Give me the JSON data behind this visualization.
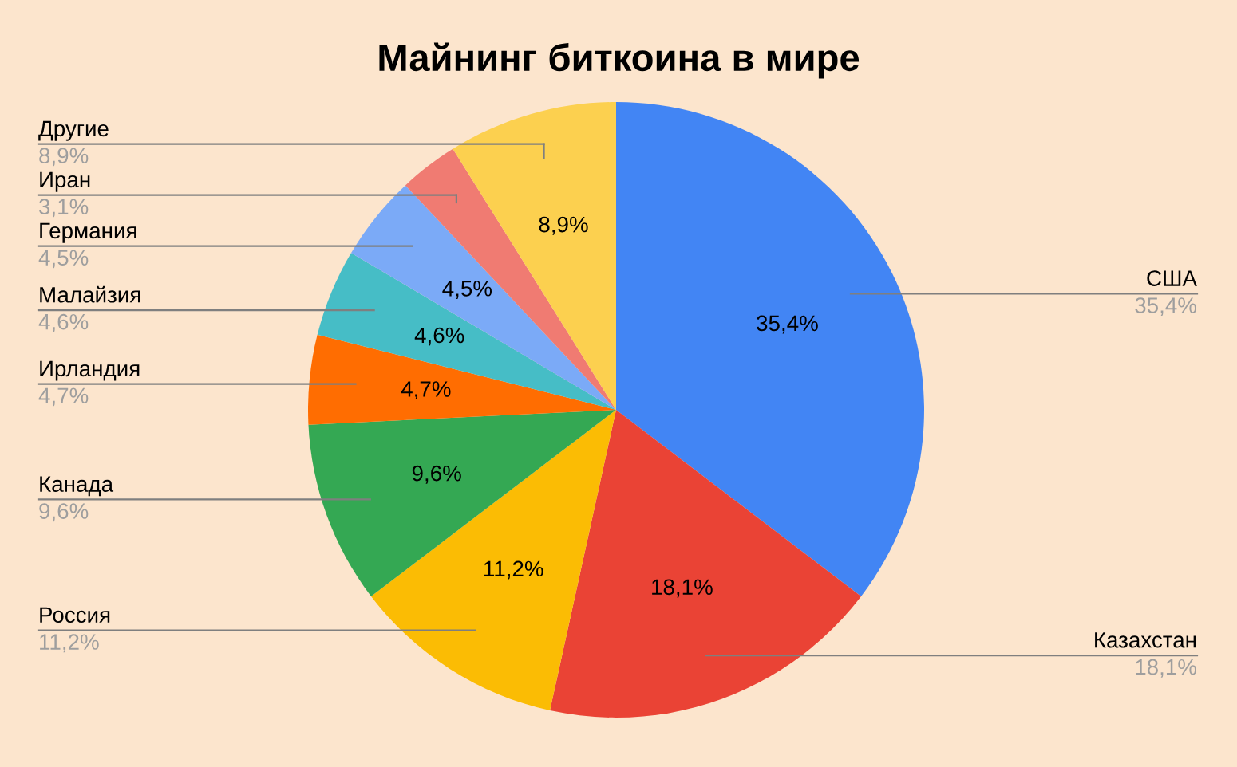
{
  "chart_data": {
    "type": "pie",
    "title": "Майнинг биткоина в мире",
    "categories": [
      "США",
      "Казахстан",
      "Россия",
      "Канада",
      "Ирландия",
      "Малайзия",
      "Германия",
      "Иран",
      "Другие"
    ],
    "values": [
      35.4,
      18.1,
      11.2,
      9.6,
      4.7,
      4.6,
      4.5,
      3.1,
      8.9
    ],
    "value_labels": [
      "35,4%",
      "18,1%",
      "11,2%",
      "9,6%",
      "4,7%",
      "4,6%",
      "4,5%",
      "3,1%",
      "8,9%"
    ],
    "colors": [
      "#4285f4",
      "#ea4335",
      "#fbbc04",
      "#34a853",
      "#ff6d01",
      "#46bdc6",
      "#7baaf7",
      "#f07b72",
      "#fcd04f"
    ]
  }
}
